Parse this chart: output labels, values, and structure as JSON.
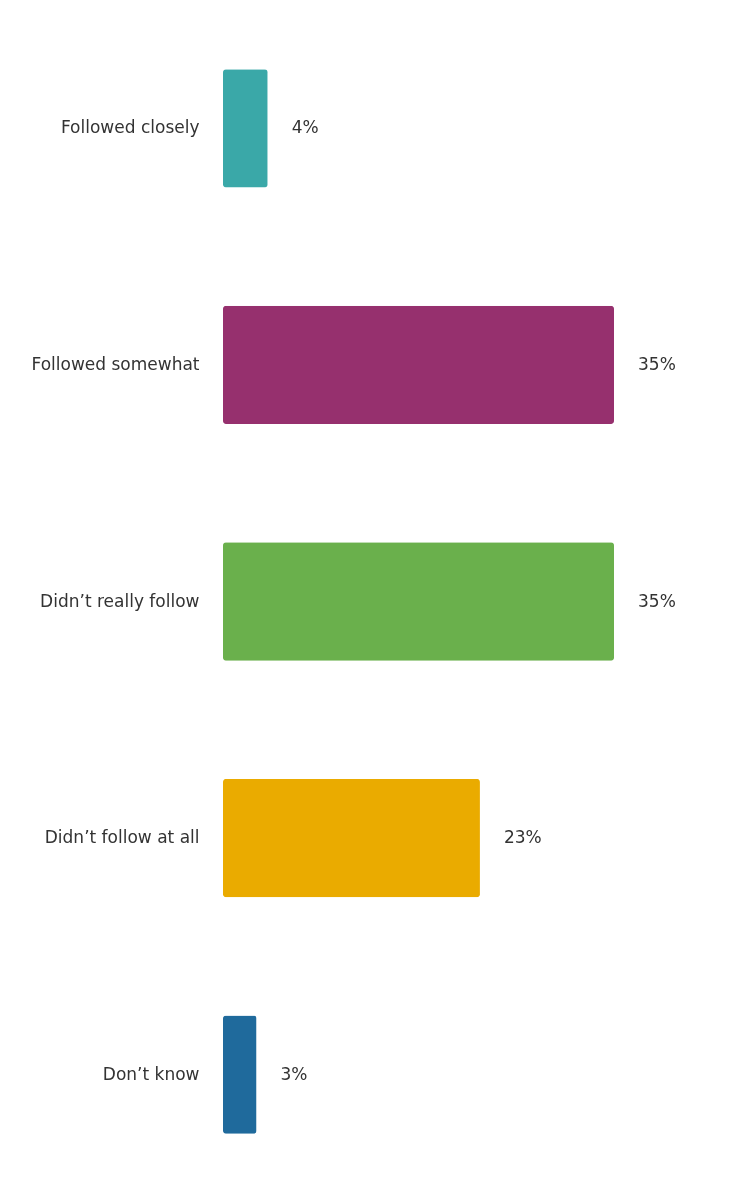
{
  "chart_data": {
    "type": "bar",
    "orientation": "horizontal",
    "categories": [
      "Followed closely",
      "Followed somewhat",
      "Didn’t really follow",
      "Didn’t follow at all",
      "Don’t know"
    ],
    "values": [
      4,
      35,
      35,
      23,
      3
    ],
    "value_labels": [
      "4%",
      "35%",
      "35%",
      "23%",
      "3%"
    ],
    "colors": [
      "#3aa8a8",
      "#96306e",
      "#6ab04c",
      "#eaab00",
      "#1f6a9c"
    ],
    "legend": false,
    "tick_labels": "y"
  }
}
